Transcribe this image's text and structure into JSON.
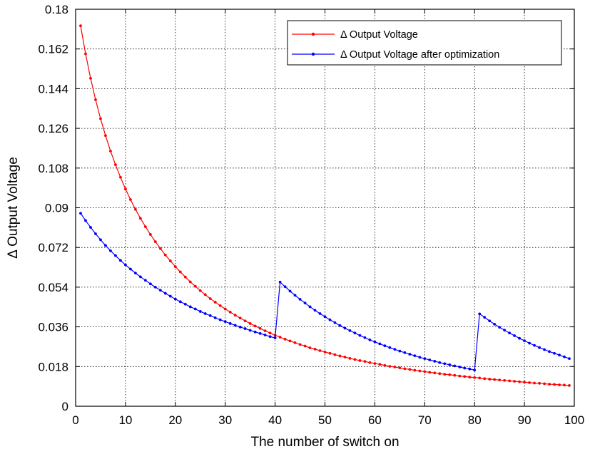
{
  "chart_data": {
    "type": "line",
    "xlabel": "The number of switch on",
    "ylabel": "Δ Output Voltage",
    "xlim": [
      0,
      100
    ],
    "ylim": [
      0,
      0.18
    ],
    "xticks": [
      0,
      10,
      20,
      30,
      40,
      50,
      60,
      70,
      80,
      90,
      100
    ],
    "yticks": [
      0,
      0.018,
      0.036,
      0.054,
      0.072,
      0.09,
      0.108,
      0.126,
      0.144,
      0.162,
      0.18
    ],
    "xtick_labels": [
      "0",
      "10",
      "20",
      "30",
      "40",
      "50",
      "60",
      "70",
      "80",
      "90",
      "100"
    ],
    "ytick_labels": [
      "0",
      "0.018",
      "0.036",
      "0.054",
      "0.072",
      "0.09",
      "0.108",
      "0.126",
      "0.144",
      "0.162",
      "0.18"
    ],
    "grid": true,
    "legend_position": "top-right",
    "series": [
      {
        "name": "Δ Output Voltage",
        "color": "#ff0000",
        "x": [
          1,
          2,
          3,
          4,
          5,
          6,
          7,
          8,
          9,
          10,
          11,
          12,
          13,
          14,
          15,
          16,
          17,
          18,
          19,
          20,
          21,
          22,
          23,
          24,
          25,
          26,
          27,
          28,
          29,
          30,
          31,
          32,
          33,
          34,
          35,
          36,
          37,
          38,
          39,
          40,
          41,
          42,
          43,
          44,
          45,
          46,
          47,
          48,
          49,
          50,
          51,
          52,
          53,
          54,
          55,
          56,
          57,
          58,
          59,
          60,
          61,
          62,
          63,
          64,
          65,
          66,
          67,
          68,
          69,
          70,
          71,
          72,
          73,
          74,
          75,
          76,
          77,
          78,
          79,
          80,
          81,
          82,
          83,
          84,
          85,
          86,
          87,
          88,
          89,
          90,
          91,
          92,
          93,
          94,
          95,
          96,
          97,
          98,
          99
        ],
        "y": [
          0.1725,
          0.1598,
          0.1487,
          0.139,
          0.1304,
          0.1227,
          0.1157,
          0.1095,
          0.1038,
          0.0985,
          0.0937,
          0.0893,
          0.0852,
          0.0814,
          0.0779,
          0.0746,
          0.0715,
          0.0686,
          0.0659,
          0.0633,
          0.0609,
          0.0586,
          0.0564,
          0.0544,
          0.0524,
          0.0506,
          0.0488,
          0.0472,
          0.0456,
          0.0441,
          0.0427,
          0.0413,
          0.04,
          0.0387,
          0.0375,
          0.0364,
          0.0353,
          0.0342,
          0.0332,
          0.0322,
          0.0313,
          0.0304,
          0.0296,
          0.0288,
          0.028,
          0.0273,
          0.0265,
          0.0259,
          0.0252,
          0.0246,
          0.024,
          0.0234,
          0.0228,
          0.0223,
          0.0217,
          0.0212,
          0.0207,
          0.0203,
          0.0198,
          0.0194,
          0.019,
          0.0185,
          0.0181,
          0.0178,
          0.0174,
          0.017,
          0.0167,
          0.0163,
          0.016,
          0.0157,
          0.0154,
          0.0151,
          0.0148,
          0.0145,
          0.0143,
          0.014,
          0.0137,
          0.0135,
          0.0132,
          0.013,
          0.0128,
          0.0125,
          0.0123,
          0.0121,
          0.0119,
          0.0117,
          0.0115,
          0.0113,
          0.0111,
          0.0109,
          0.0107,
          0.0105,
          0.0104,
          0.0102,
          0.01,
          0.0099,
          0.0097,
          0.0096,
          0.0094
        ]
      },
      {
        "name": "Δ Output Voltage after optimization",
        "color": "#0000ff",
        "x": [
          1,
          2,
          3,
          4,
          5,
          6,
          7,
          8,
          9,
          10,
          11,
          12,
          13,
          14,
          15,
          16,
          17,
          18,
          19,
          20,
          21,
          22,
          23,
          24,
          25,
          26,
          27,
          28,
          29,
          30,
          31,
          32,
          33,
          34,
          35,
          36,
          37,
          38,
          39,
          40,
          41,
          42,
          43,
          44,
          45,
          46,
          47,
          48,
          49,
          50,
          51,
          52,
          53,
          54,
          55,
          56,
          57,
          58,
          59,
          60,
          61,
          62,
          63,
          64,
          65,
          66,
          67,
          68,
          69,
          70,
          71,
          72,
          73,
          74,
          75,
          76,
          77,
          78,
          79,
          80,
          81,
          82,
          83,
          84,
          85,
          86,
          87,
          88,
          89,
          90,
          91,
          92,
          93,
          94,
          95,
          96,
          97,
          98,
          99
        ],
        "y": [
          0.0875,
          0.0842,
          0.0811,
          0.0782,
          0.0755,
          0.0729,
          0.0705,
          0.0683,
          0.0661,
          0.0641,
          0.0622,
          0.0604,
          0.0587,
          0.0571,
          0.0555,
          0.054,
          0.0526,
          0.0512,
          0.0499,
          0.0486,
          0.0474,
          0.0463,
          0.0451,
          0.0441,
          0.043,
          0.042,
          0.0411,
          0.0401,
          0.0392,
          0.0384,
          0.0375,
          0.0367,
          0.0359,
          0.0352,
          0.0344,
          0.0337,
          0.033,
          0.0323,
          0.0316,
          0.031,
          0.0563,
          0.0542,
          0.0522,
          0.0503,
          0.0485,
          0.0468,
          0.0451,
          0.0435,
          0.042,
          0.0406,
          0.0392,
          0.0379,
          0.0366,
          0.0354,
          0.0343,
          0.0332,
          0.0321,
          0.0311,
          0.0301,
          0.0292,
          0.0283,
          0.0274,
          0.0266,
          0.0258,
          0.025,
          0.0243,
          0.0236,
          0.0229,
          0.0222,
          0.0216,
          0.021,
          0.0204,
          0.0198,
          0.0193,
          0.0188,
          0.0183,
          0.0178,
          0.0173,
          0.0169,
          0.0164,
          0.0419,
          0.0403,
          0.0387,
          0.0372,
          0.0358,
          0.0345,
          0.0332,
          0.032,
          0.0308,
          0.0297,
          0.0286,
          0.0276,
          0.0266,
          0.0257,
          0.0248,
          0.024,
          0.0232,
          0.0224,
          0.0216
        ]
      }
    ]
  }
}
